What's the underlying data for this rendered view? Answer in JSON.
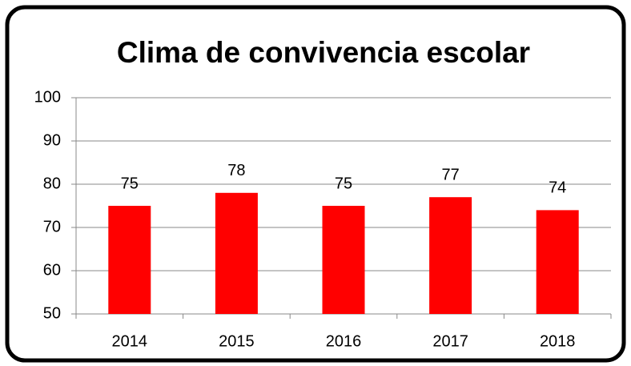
{
  "chart_data": {
    "type": "bar",
    "title": "Clima de convivencia escolar",
    "categories": [
      "2014",
      "2015",
      "2016",
      "2017",
      "2018"
    ],
    "values": [
      75,
      78,
      75,
      77,
      74
    ],
    "color": "#ff0000",
    "ylim": [
      50,
      100
    ],
    "yticks": [
      50,
      60,
      70,
      80,
      90,
      100
    ],
    "grid": true
  }
}
